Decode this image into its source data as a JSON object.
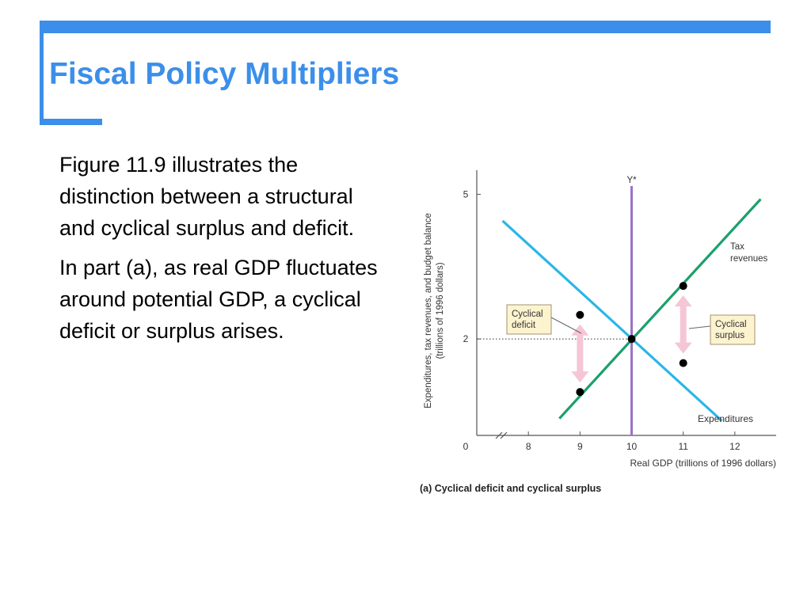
{
  "slide": {
    "title": "Fiscal Policy Multipliers",
    "paragraphs": [
      "Figure 11.9 illustrates the distinction between a structural and cyclical surplus and deficit.",
      "In part (a), as real GDP fluctuates around potential GDP, a cyclical deficit or surplus arises."
    ],
    "accent_color": "#3b8fea"
  },
  "chart_data": {
    "type": "line",
    "title": "",
    "caption": "(a) Cyclical deficit and cyclical surplus",
    "xlabel": "Real GDP (trillions of 1996 dollars)",
    "ylabel": "Expenditures, tax revenues, and budget balance (trillions of 1996 dollars)",
    "x_origin_label": "0",
    "x_ticks": [
      8,
      9,
      10,
      11,
      12
    ],
    "x_tick_labels": [
      "8",
      "9",
      "10",
      "11",
      "12"
    ],
    "y_ticks": [
      2,
      5
    ],
    "y_tick_labels": [
      "2",
      "5"
    ],
    "xlim": [
      7.0,
      12.8
    ],
    "ylim": [
      0,
      5.5
    ],
    "axis_break": true,
    "grid": false,
    "series": [
      {
        "name": "Tax revenues",
        "color": "#1aa06a",
        "x": [
          8.6,
          12.5
        ],
        "y": [
          0.35,
          4.9
        ]
      },
      {
        "name": "Expenditures",
        "color": "#29b6e8",
        "x": [
          7.5,
          11.75
        ],
        "y": [
          4.45,
          0.3
        ]
      }
    ],
    "points": [
      {
        "x": 9,
        "y": 2.5
      },
      {
        "x": 9,
        "y": 0.9
      },
      {
        "x": 10,
        "y": 2
      },
      {
        "x": 11,
        "y": 3.1
      },
      {
        "x": 11,
        "y": 1.5
      }
    ],
    "potential_gdp": {
      "label": "Y*",
      "x": 10,
      "color": "#9b72c4"
    },
    "reference_y": 2,
    "gaps": [
      {
        "label": "Cyclical deficit",
        "lines": [
          "Cyclical",
          "deficit"
        ],
        "x": 9,
        "y_from": 2.5,
        "y_to": 0.9
      },
      {
        "label": "Cyclical surplus",
        "lines": [
          "Cyclical",
          "surplus"
        ],
        "x": 11,
        "y_from": 3.1,
        "y_to": 1.5
      }
    ],
    "arrow_color": "#f5c6d6",
    "callout_fill": "#fdf3cf"
  }
}
